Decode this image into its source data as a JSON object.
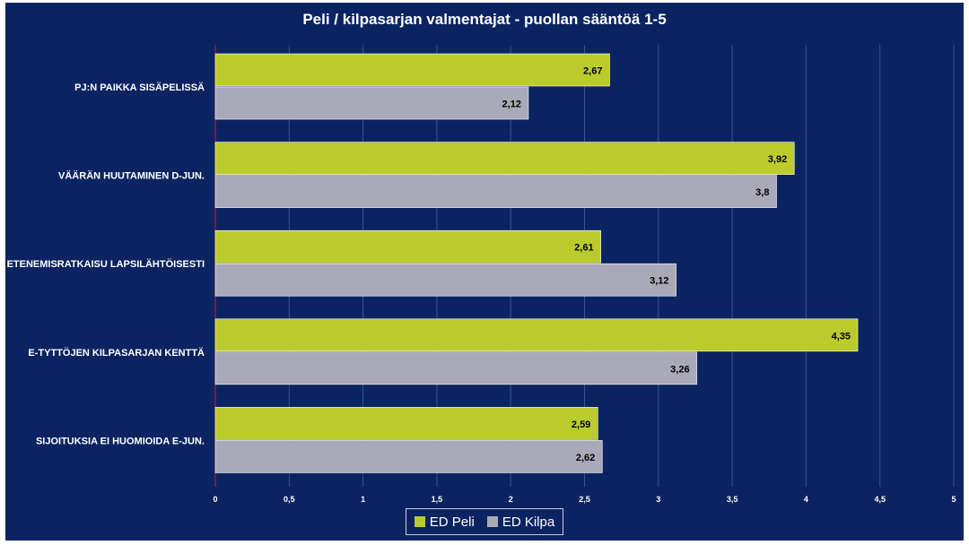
{
  "chart_data": {
    "type": "bar",
    "orientation": "horizontal",
    "title": "Peli / kilpasarjan valmentajat - puollan sääntöä 1-5",
    "categories": [
      "PJ:N PAIKKA SISÄPELISSÄ",
      "VÄÄRÄN HUUTAMINEN D-JUN.",
      "ETENEMISRATKAISU LAPSILÄHTÖISESTI",
      "E-TYTTÖJEN KILPASARJAN KENTTÄ",
      "SIJOITUKSIA EI HUOMIOIDA E-JUN."
    ],
    "series": [
      {
        "name": "ED Peli",
        "color": "#bccb2c",
        "values": [
          2.67,
          3.92,
          2.61,
          4.35,
          2.59
        ],
        "labels": [
          "2,67",
          "3,92",
          "2,61",
          "4,35",
          "2,59"
        ]
      },
      {
        "name": "ED Kilpa",
        "color": "#a9a9b8",
        "values": [
          2.12,
          3.8,
          3.12,
          3.26,
          2.62
        ],
        "labels": [
          "2,12",
          "3,8",
          "3,12",
          "3,26",
          "2,62"
        ]
      }
    ],
    "xlim": [
      0,
      5
    ],
    "x_ticks": [
      "0",
      "0,5",
      "1",
      "1,5",
      "2",
      "2,5",
      "3",
      "3,5",
      "4",
      "4,5",
      "5"
    ],
    "grid": true,
    "legend_position": "bottom"
  }
}
